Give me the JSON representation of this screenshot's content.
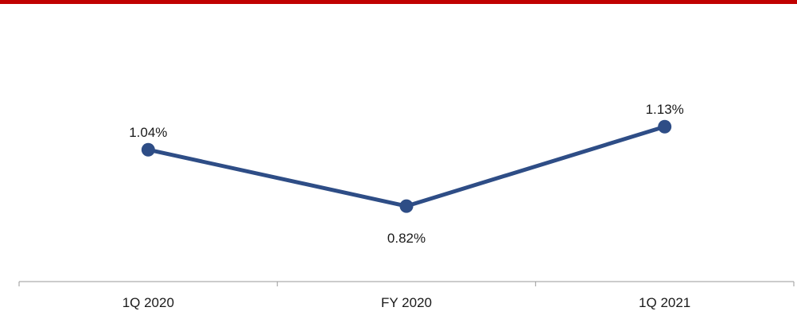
{
  "colors": {
    "top_bar": "#C00000",
    "series_line": "#2E4D86",
    "axis": "#9a9a9a"
  },
  "chart_data": {
    "type": "line",
    "categories": [
      "1Q 2020",
      "FY 2020",
      "1Q 2021"
    ],
    "series": [
      {
        "values": [
          1.04,
          0.82,
          1.13
        ],
        "labels": [
          "1.04%",
          "0.82%",
          "1.13%"
        ],
        "label_position": [
          "above",
          "below",
          "above"
        ]
      }
    ],
    "y_unit": "%",
    "ylim": [
      0.6,
      1.5
    ],
    "grid": false,
    "legend": "none"
  }
}
